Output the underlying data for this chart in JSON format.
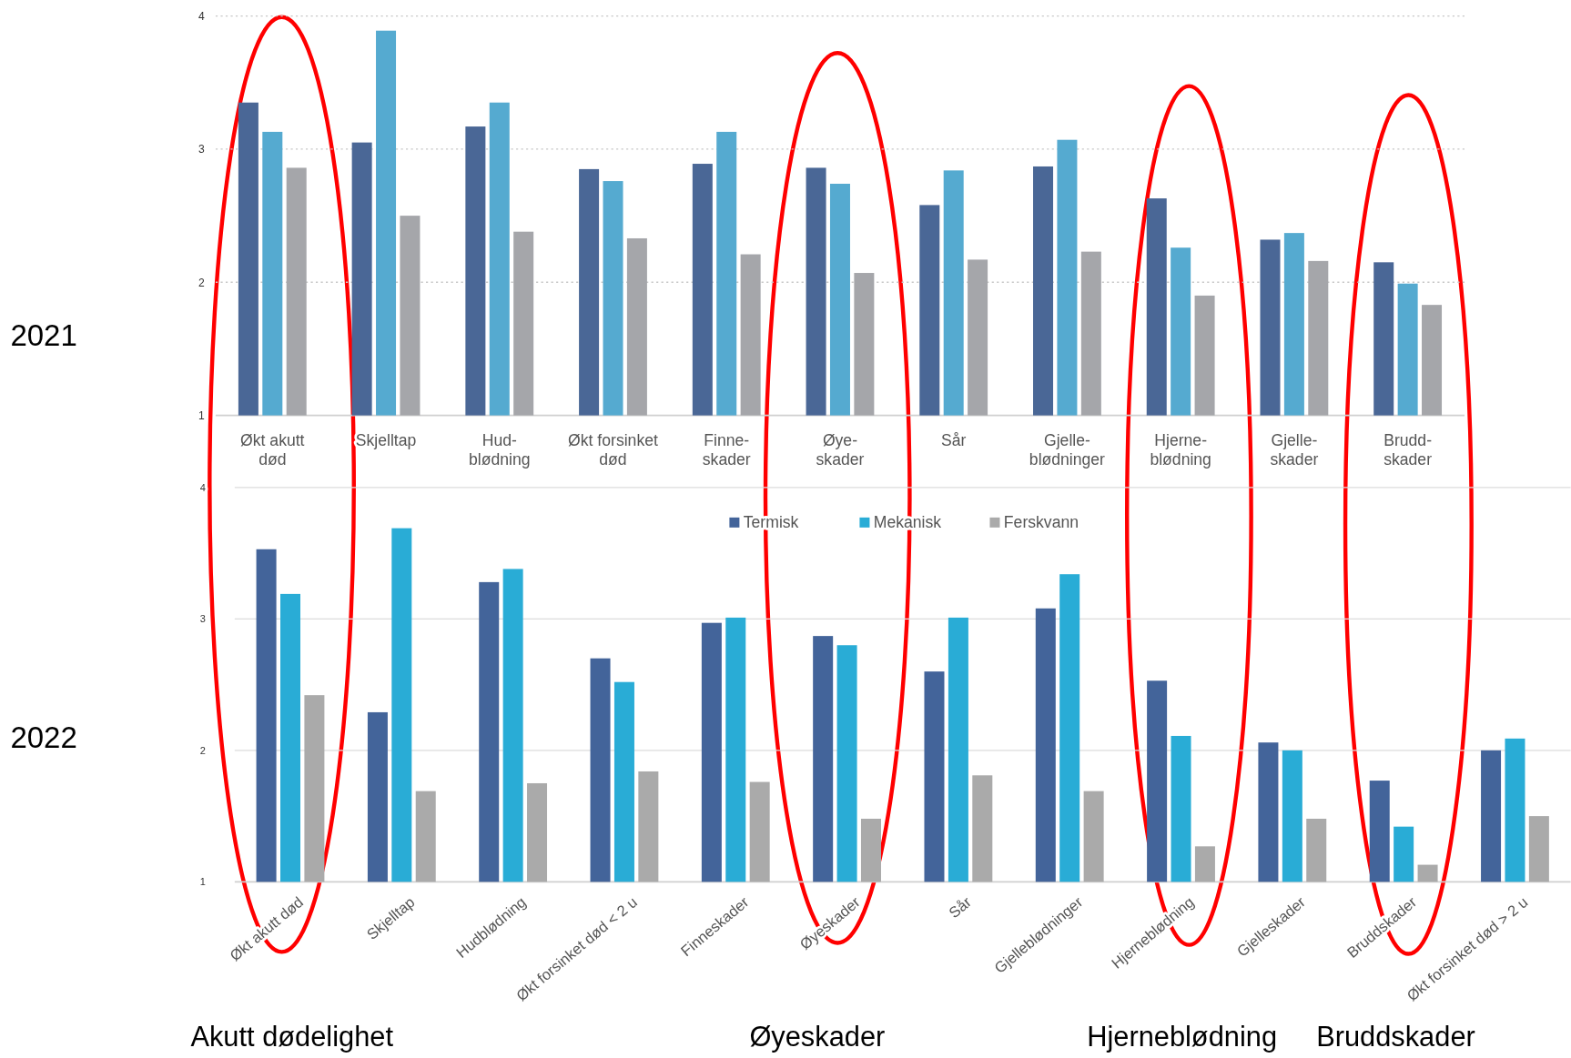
{
  "chart_data": [
    {
      "type": "bar",
      "title": "2021",
      "categories": [
        "Økt akutt\ndød",
        "Skjelltap",
        "Hud-\nblødning",
        "Økt forsinket\ndød",
        "Finne-\nskader",
        "Øye-\nskader",
        "Sår",
        "Gjelle-\nblødninger",
        "Hjerne-\nblødning",
        "Gjelle-\nskader",
        "Brudd-\nskader"
      ],
      "series": [
        {
          "color": "#4a6796",
          "values": [
            3.35,
            3.05,
            3.17,
            2.85,
            2.89,
            2.86,
            2.58,
            2.87,
            2.63,
            2.32,
            2.15
          ]
        },
        {
          "color": "#55aad0",
          "values": [
            3.13,
            3.89,
            3.35,
            2.76,
            3.13,
            2.74,
            2.84,
            3.07,
            2.26,
            2.37,
            1.99
          ]
        },
        {
          "color": "#a5a6aa",
          "values": [
            2.86,
            2.5,
            2.38,
            2.33,
            2.21,
            2.07,
            2.17,
            2.23,
            1.9,
            2.16,
            1.83
          ]
        }
      ],
      "ylim": [
        1,
        4
      ],
      "yticks": [
        1,
        2,
        3,
        4
      ],
      "grid": "y",
      "line_style": "dotted",
      "legend": false
    },
    {
      "type": "bar",
      "title": "2022",
      "categories": [
        "Økt akutt død",
        "Skjelltap",
        "Hudblødning",
        "Økt forsinket død < 2 u",
        "Finneskader",
        "Øyeskader",
        "Sår",
        "Gjelleblødninger",
        "Hjerneblødning",
        "Gjelleskader",
        "Bruddskader",
        "Økt forsinket død > 2 u"
      ],
      "series": [
        {
          "name": "Termisk",
          "color": "#43649a",
          "values": [
            3.53,
            2.29,
            3.28,
            2.7,
            2.97,
            2.87,
            2.6,
            3.08,
            2.53,
            2.06,
            1.77,
            2.0
          ]
        },
        {
          "name": "Mekanisk",
          "color": "#29acd6",
          "values": [
            3.19,
            3.69,
            3.38,
            2.52,
            3.01,
            2.8,
            3.01,
            3.34,
            2.11,
            2.0,
            1.42,
            2.09
          ]
        },
        {
          "name": "Ferskvann",
          "color": "#aaaaaa",
          "values": [
            2.42,
            1.69,
            1.75,
            1.84,
            1.76,
            1.48,
            1.81,
            1.69,
            1.27,
            1.48,
            1.13,
            1.5
          ]
        }
      ],
      "ylim": [
        1,
        4
      ],
      "yticks": [
        1,
        2,
        3,
        4
      ],
      "grid": "y",
      "legend": "top",
      "annotations": [
        "Akutt dødelighet",
        "Øyeskader",
        "Hjerneblødning",
        "Bruddskader"
      ]
    }
  ]
}
